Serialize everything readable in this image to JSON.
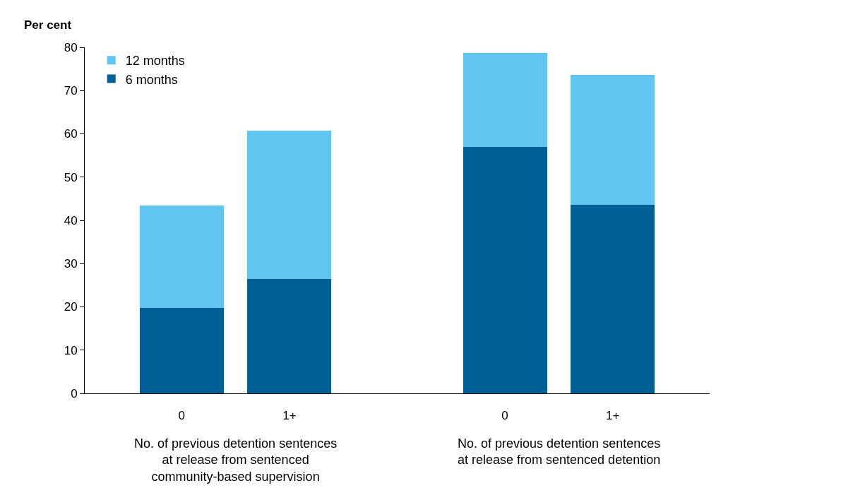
{
  "chart_data": {
    "type": "bar",
    "stacked": true,
    "categories": [
      "0",
      "1+",
      null,
      "0",
      "1+"
    ],
    "series": [
      {
        "name": "6 months",
        "color": "#005f94",
        "values": [
          19.8,
          26.4,
          null,
          57.0,
          43.6
        ]
      },
      {
        "name": "12 months",
        "color": "#62c5f1",
        "values": [
          23.6,
          34.3,
          null,
          21.7,
          30.0
        ]
      }
    ],
    "ylabel": "Per cent",
    "ylim": [
      0,
      80
    ],
    "yticks": [
      0,
      10,
      20,
      30,
      40,
      50,
      60,
      70,
      80
    ],
    "legend": "top left",
    "annotations": [
      "No. of previous detention sentences\nat release from sentenced\ncommunity-based supervision",
      "No. of previous detention sentences\nat release from sentenced detention"
    ]
  }
}
